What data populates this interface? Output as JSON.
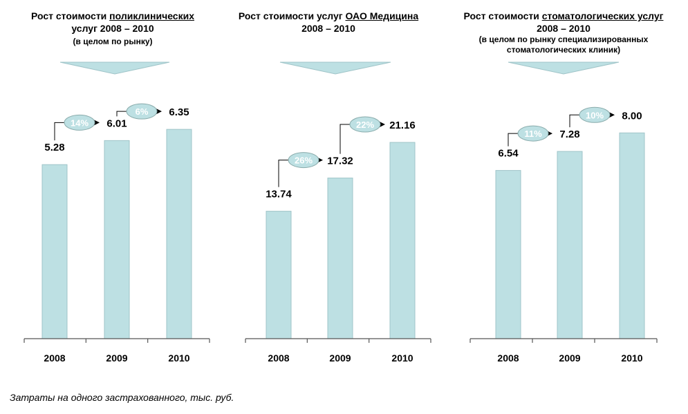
{
  "footnote": "Затраты на одного застрахованного, тыс. руб.",
  "colors": {
    "bar": "#bde0e3",
    "bar_edge": "#9fc4c8",
    "bubble_text": "#ffffff"
  },
  "chart_data": [
    {
      "type": "bar",
      "title_parts": [
        "Рост стоимости ",
        "поликлинических",
        " услуг 2008 – 2010"
      ],
      "subtitle": "(в целом по рынку)",
      "categories": [
        "2008",
        "2009",
        "2010"
      ],
      "values": [
        5.28,
        6.01,
        6.35
      ],
      "value_labels": [
        "5.28",
        "6.01",
        "6.35"
      ],
      "growth_labels": [
        "14%",
        "6%"
      ],
      "ylim": [
        0,
        6.5
      ]
    },
    {
      "type": "bar",
      "title_parts": [
        "Рост стоимости услуг ",
        "ОАО Медицина",
        " 2008 – 2010"
      ],
      "subtitle": "",
      "categories": [
        "2008",
        "2009",
        "2010"
      ],
      "values": [
        13.74,
        17.32,
        21.16
      ],
      "value_labels": [
        "13.74",
        "17.32",
        "21.16"
      ],
      "growth_labels": [
        "26%",
        "22%"
      ],
      "ylim": [
        0,
        23.1
      ]
    },
    {
      "type": "bar",
      "title_parts": [
        "Рост стоимости ",
        "стоматологических услуг",
        " 2008 – 2010"
      ],
      "subtitle": "(в целом по рынку специализированных стоматологических клиник)",
      "categories": [
        "2008",
        "2009",
        "2010"
      ],
      "values": [
        6.54,
        7.28,
        8.0
      ],
      "value_labels": [
        "6.54",
        "7.28",
        "8.00"
      ],
      "growth_labels": [
        "11%",
        "10%"
      ],
      "ylim": [
        0,
        8.33
      ]
    }
  ]
}
